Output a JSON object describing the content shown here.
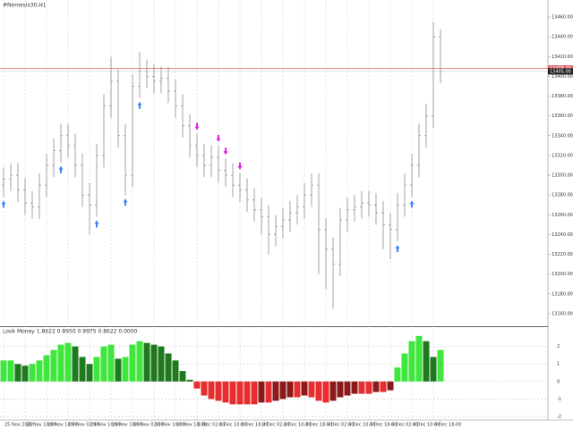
{
  "chart_data": [
    {
      "type": "ohlc",
      "title": "#Nemesis30,H1",
      "color": "#8c8c8c",
      "open": [
        13290,
        13296,
        13300,
        13285,
        13272,
        13268,
        13290,
        13310,
        13325,
        13340,
        13330,
        13310,
        13280,
        13270,
        13320,
        13370,
        13395,
        13340,
        13300,
        13390,
        13405,
        13400,
        13395,
        13398,
        13385,
        13370,
        13350,
        13330,
        13320,
        13310,
        13318,
        13305,
        13300,
        13290,
        13285,
        13275,
        13265,
        13258,
        13240,
        13248,
        13255,
        13262,
        13268,
        13280,
        13290,
        13245,
        13225,
        13210,
        13255,
        13265,
        13268,
        13272,
        13270,
        13262,
        13250,
        13245,
        13270,
        13290,
        13310,
        13340,
        13360,
        13440
      ],
      "high": [
        13308,
        13312,
        13312,
        13297,
        13284,
        13302,
        13322,
        13337,
        13352,
        13352,
        13342,
        13322,
        13292,
        13332,
        13382,
        13420,
        13407,
        13352,
        13402,
        13425,
        13417,
        13412,
        13410,
        13410,
        13397,
        13382,
        13362,
        13342,
        13332,
        13330,
        13330,
        13317,
        13312,
        13302,
        13297,
        13287,
        13277,
        13270,
        13260,
        13267,
        13274,
        13280,
        13292,
        13302,
        13302,
        13257,
        13237,
        13267,
        13277,
        13280,
        13284,
        13284,
        13282,
        13274,
        13262,
        13282,
        13302,
        13322,
        13352,
        13372,
        13455,
        13448
      ],
      "low": [
        13278,
        13284,
        13273,
        13260,
        13256,
        13256,
        13278,
        13298,
        13313,
        13318,
        13298,
        13268,
        13240,
        13258,
        13308,
        13358,
        13328,
        13280,
        13288,
        13378,
        13388,
        13383,
        13383,
        13373,
        13358,
        13338,
        13318,
        13308,
        13298,
        13298,
        13293,
        13288,
        13278,
        13273,
        13263,
        13253,
        13240,
        13220,
        13228,
        13236,
        13243,
        13250,
        13256,
        13268,
        13200,
        13185,
        13165,
        13198,
        13243,
        13253,
        13256,
        13258,
        13250,
        13225,
        13215,
        13233,
        13258,
        13278,
        13298,
        13328,
        13348,
        13393
      ],
      "close": [
        13296,
        13300,
        13285,
        13272,
        13268,
        13290,
        13310,
        13325,
        13340,
        13330,
        13310,
        13280,
        13270,
        13320,
        13370,
        13395,
        13340,
        13300,
        13390,
        13405,
        13400,
        13395,
        13398,
        13385,
        13370,
        13350,
        13330,
        13320,
        13310,
        13318,
        13305,
        13300,
        13290,
        13285,
        13275,
        13265,
        13258,
        13240,
        13248,
        13255,
        13262,
        13268,
        13280,
        13290,
        13245,
        13225,
        13210,
        13255,
        13265,
        13268,
        13272,
        13270,
        13262,
        13250,
        13245,
        13270,
        13290,
        13310,
        13340,
        13360,
        13440,
        13405
      ],
      "last_price_label": "13405.00",
      "level": {
        "value": 13408,
        "label": "13408.40",
        "color": "#e06060"
      },
      "signals": [
        {
          "bar": 0,
          "dir": "up"
        },
        {
          "bar": 8,
          "dir": "up"
        },
        {
          "bar": 13,
          "dir": "up"
        },
        {
          "bar": 17,
          "dir": "up"
        },
        {
          "bar": 19,
          "dir": "up"
        },
        {
          "bar": 27,
          "dir": "down"
        },
        {
          "bar": 30,
          "dir": "down"
        },
        {
          "bar": 31,
          "dir": "down"
        },
        {
          "bar": 33,
          "dir": "down"
        },
        {
          "bar": 55,
          "dir": "up"
        },
        {
          "bar": 57,
          "dir": "up"
        }
      ],
      "signal_colors": {
        "up": "#3a86ff",
        "down": "#e020e0"
      },
      "ylim": [
        13150,
        13470
      ],
      "yticks": [
        {
          "value": 13160,
          "label": "13160.00"
        },
        {
          "value": 13180,
          "label": "13180.00"
        },
        {
          "value": 13200,
          "label": "13200.00"
        },
        {
          "value": 13220,
          "label": "13220.00"
        },
        {
          "value": 13240,
          "label": "13240.00"
        },
        {
          "value": 13260,
          "label": "13260.00"
        },
        {
          "value": 13280,
          "label": "13280.00"
        },
        {
          "value": 13300,
          "label": "13300.00"
        },
        {
          "value": 13320,
          "label": "13320.00"
        },
        {
          "value": 13340,
          "label": "13340.00"
        },
        {
          "value": 13360,
          "label": "13360.00"
        },
        {
          "value": 13380,
          "label": "13380.00"
        },
        {
          "value": 13400,
          "label": "13400.00"
        },
        {
          "value": 13420,
          "label": "13420.00"
        },
        {
          "value": 13440,
          "label": "13440.00"
        },
        {
          "value": 13460,
          "label": "13460.00"
        }
      ]
    },
    {
      "type": "histogram_bar",
      "title": "Look Money 1.8622 0.8950 0.9975 0.8622 0.0000",
      "categories": [
        "25 Nov 2022",
        null,
        null,
        "28 Nov 10:00",
        null,
        null,
        "28 Nov 18:00",
        null,
        null,
        "29 Nov 02:00",
        null,
        null,
        "29 Nov 10:00",
        null,
        null,
        "29 Nov 18:00",
        null,
        null,
        "30 Nov 02:00",
        null,
        null,
        "30 Nov 10:00",
        null,
        null,
        "30 Nov 18:00",
        null,
        null,
        "1 Dec 02:00",
        null,
        null,
        "1 Dec 10:00",
        null,
        null,
        "1 Dec 18:00",
        null,
        null,
        "2 Dec 02:00",
        null,
        null,
        "2 Dec 10:00",
        null,
        null,
        "2 Dec 18:00",
        null,
        null,
        "5 Dec 02:00",
        null,
        null,
        "5 Dec 10:00",
        null,
        null,
        "5 Dec 18:00",
        null,
        null,
        "6 Dec 02:00",
        null,
        null,
        "6 Dec 10:00",
        null,
        null,
        "6 Dec 18:00",
        null
      ],
      "values": [
        1.2,
        1.2,
        1.0,
        0.9,
        1.0,
        1.2,
        1.5,
        1.8,
        2.1,
        2.2,
        2.0,
        1.4,
        1.0,
        1.4,
        2.0,
        2.1,
        1.3,
        1.4,
        2.1,
        2.3,
        2.2,
        2.1,
        2.0,
        1.6,
        1.2,
        0.6,
        0.1,
        -0.4,
        -0.8,
        -1.0,
        -1.1,
        -1.2,
        -1.3,
        -1.3,
        -1.3,
        -1.3,
        -1.2,
        -1.2,
        -1.1,
        -1.0,
        -0.9,
        -0.9,
        -0.8,
        -0.9,
        -1.1,
        -1.2,
        -1.1,
        -0.9,
        -0.8,
        -0.7,
        -0.7,
        -0.7,
        -0.6,
        -0.6,
        -0.5,
        0.8,
        1.6,
        2.3,
        2.6,
        2.3,
        1.4,
        1.8
      ],
      "colors": {
        "pos_up": "#3ee63e",
        "pos_down": "#1f7a1f",
        "neg_down": "#e62e2e",
        "neg_up": "#8b1a1a"
      },
      "ylim": [
        -2.2,
        3.0
      ],
      "yticks": [
        -2,
        -1,
        0,
        1,
        2
      ],
      "grid": true
    }
  ]
}
